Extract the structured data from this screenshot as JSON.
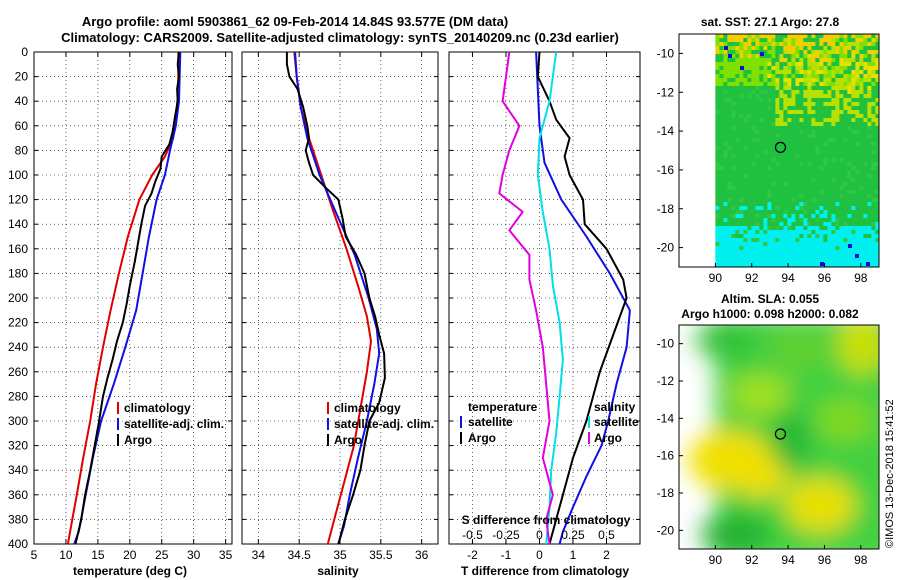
{
  "header": {
    "title_line1": "Argo profile: aoml 5903861_62 09-Feb-2014 14.84S 93.577E (DM data)",
    "title_line2": "Climatology: CARS2009. Satellite-adjusted climatology: synTS_20140209.nc (0.23d earlier)"
  },
  "watermark": "©IMOS 13-Dec-2018 15:41:52",
  "colors": {
    "climatology": "#e00000",
    "satellite": "#1010e0",
    "argo": "#000000",
    "t_diff": "#00e0e8",
    "s_diff": "#e000e0"
  },
  "chart_data": [
    {
      "type": "line",
      "name": "temperature",
      "xlabel": "temperature (deg C)",
      "ylabel": "depth",
      "xlim": [
        5,
        36
      ],
      "ylim": [
        0,
        400
      ],
      "xticks": [
        "5",
        "10",
        "15",
        "20",
        "25",
        "30",
        "35"
      ],
      "yticks": [
        "0",
        "20",
        "40",
        "60",
        "80",
        "100",
        "120",
        "140",
        "160",
        "180",
        "200",
        "220",
        "240",
        "260",
        "280",
        "300",
        "320",
        "340",
        "360",
        "380",
        "400"
      ],
      "legend": [
        "climatology",
        "satellite-adj. clim.",
        "Argo"
      ],
      "series": [
        {
          "name": "climatology",
          "color": "#e00000",
          "points": [
            [
              27.6,
              0
            ],
            [
              27.6,
              30
            ],
            [
              27.3,
              50
            ],
            [
              26.8,
              70
            ],
            [
              25.5,
              85
            ],
            [
              23.5,
              100
            ],
            [
              21.5,
              120
            ],
            [
              19.7,
              150
            ],
            [
              18.3,
              180
            ],
            [
              17.0,
              210
            ],
            [
              15.8,
              240
            ],
            [
              14.7,
              270
            ],
            [
              13.8,
              300
            ],
            [
              12.7,
              330
            ],
            [
              11.7,
              360
            ],
            [
              11.0,
              380
            ],
            [
              10.3,
              400
            ]
          ]
        },
        {
          "name": "satellite-adj. clim.",
          "color": "#1010e0",
          "points": [
            [
              27.9,
              0
            ],
            [
              27.7,
              40
            ],
            [
              27.2,
              60
            ],
            [
              26.3,
              80
            ],
            [
              25.5,
              100
            ],
            [
              24.2,
              120
            ],
            [
              23.0,
              150
            ],
            [
              22.0,
              180
            ],
            [
              21.0,
              210
            ],
            [
              19.3,
              240
            ],
            [
              17.5,
              270
            ],
            [
              15.5,
              300
            ],
            [
              14.2,
              330
            ],
            [
              13.1,
              360
            ],
            [
              12.0,
              390
            ],
            [
              11.3,
              400
            ]
          ]
        },
        {
          "name": "Argo",
          "color": "#000000",
          "points": [
            [
              27.7,
              0
            ],
            [
              27.5,
              10
            ],
            [
              27.7,
              20
            ],
            [
              27.4,
              30
            ],
            [
              27.5,
              40
            ],
            [
              27.0,
              55
            ],
            [
              26.7,
              65
            ],
            [
              26.2,
              75
            ],
            [
              25.0,
              85
            ],
            [
              24.8,
              95
            ],
            [
              24.0,
              105
            ],
            [
              23.4,
              115
            ],
            [
              22.4,
              125
            ],
            [
              21.8,
              140
            ],
            [
              21.3,
              155
            ],
            [
              20.8,
              170
            ],
            [
              20.0,
              190
            ],
            [
              19.5,
              205
            ],
            [
              18.9,
              220
            ],
            [
              18.0,
              235
            ],
            [
              17.3,
              250
            ],
            [
              16.5,
              265
            ],
            [
              15.8,
              280
            ],
            [
              15.2,
              300
            ],
            [
              14.5,
              320
            ],
            [
              13.8,
              340
            ],
            [
              13.0,
              360
            ],
            [
              12.4,
              380
            ],
            [
              11.5,
              400
            ]
          ]
        }
      ]
    },
    {
      "type": "line",
      "name": "salinity",
      "xlabel": "salinity",
      "xlim": [
        33.8,
        36.2
      ],
      "ylim": [
        0,
        400
      ],
      "xticks": [
        "34",
        "34.5",
        "35",
        "35.5",
        "36"
      ],
      "legend": [
        "climatology",
        "satellite-adj. clim.",
        "Argo"
      ],
      "series": [
        {
          "name": "climatology",
          "color": "#e00000",
          "points": [
            [
              34.44,
              0
            ],
            [
              34.47,
              20
            ],
            [
              34.52,
              45
            ],
            [
              34.62,
              70
            ],
            [
              34.77,
              100
            ],
            [
              34.92,
              130
            ],
            [
              35.08,
              160
            ],
            [
              35.22,
              190
            ],
            [
              35.33,
              215
            ],
            [
              35.38,
              235
            ],
            [
              35.33,
              260
            ],
            [
              35.25,
              290
            ],
            [
              35.17,
              320
            ],
            [
              35.05,
              350
            ],
            [
              34.95,
              375
            ],
            [
              34.85,
              400
            ]
          ]
        },
        {
          "name": "satellite-adj. clim.",
          "color": "#1010e0",
          "points": [
            [
              34.45,
              0
            ],
            [
              34.47,
              20
            ],
            [
              34.52,
              45
            ],
            [
              34.6,
              70
            ],
            [
              34.75,
              100
            ],
            [
              34.98,
              135
            ],
            [
              35.18,
              165
            ],
            [
              35.35,
              200
            ],
            [
              35.45,
              225
            ],
            [
              35.48,
              245
            ],
            [
              35.42,
              270
            ],
            [
              35.33,
              300
            ],
            [
              35.22,
              330
            ],
            [
              35.12,
              360
            ],
            [
              35.05,
              385
            ],
            [
              34.98,
              400
            ]
          ]
        },
        {
          "name": "Argo",
          "color": "#000000",
          "points": [
            [
              34.35,
              0
            ],
            [
              34.35,
              10
            ],
            [
              34.38,
              20
            ],
            [
              34.48,
              30
            ],
            [
              34.55,
              45
            ],
            [
              34.6,
              60
            ],
            [
              34.62,
              70
            ],
            [
              34.58,
              80
            ],
            [
              34.62,
              90
            ],
            [
              34.67,
              100
            ],
            [
              34.82,
              110
            ],
            [
              34.98,
              120
            ],
            [
              35.03,
              135
            ],
            [
              35.07,
              150
            ],
            [
              35.2,
              165
            ],
            [
              35.3,
              180
            ],
            [
              35.36,
              200
            ],
            [
              35.43,
              215
            ],
            [
              35.48,
              230
            ],
            [
              35.54,
              245
            ],
            [
              35.55,
              265
            ],
            [
              35.48,
              285
            ],
            [
              35.36,
              300
            ],
            [
              35.3,
              320
            ],
            [
              35.25,
              340
            ],
            [
              35.16,
              360
            ],
            [
              35.06,
              380
            ],
            [
              34.98,
              400
            ]
          ]
        }
      ]
    },
    {
      "type": "line",
      "name": "difference",
      "xlabel": "T difference from climatology",
      "top_axis_label": "S difference from climatology",
      "xlim": [
        -2.7,
        3.0
      ],
      "ylim": [
        0,
        400
      ],
      "xticks": [
        "-2",
        "-1",
        "0",
        "1",
        "2"
      ],
      "top_xticks": [
        "-0.5",
        "-0.25",
        "0",
        "0.25",
        "0.5"
      ],
      "legend_left": [
        "temperature",
        "satellite",
        "Argo"
      ],
      "legend_right": [
        "salinity",
        "satellite",
        "Argo"
      ],
      "series": [
        {
          "name": "T satellite",
          "color": "#1010e0",
          "points": [
            [
              -0.1,
              0
            ],
            [
              -0.05,
              30
            ],
            [
              0.0,
              60
            ],
            [
              0.15,
              90
            ],
            [
              0.65,
              120
            ],
            [
              1.4,
              150
            ],
            [
              2.1,
              180
            ],
            [
              2.7,
              210
            ],
            [
              2.6,
              240
            ],
            [
              2.3,
              270
            ],
            [
              2.05,
              300
            ],
            [
              1.85,
              320
            ],
            [
              1.4,
              345
            ],
            [
              1.0,
              370
            ],
            [
              0.7,
              390
            ],
            [
              0.6,
              400
            ]
          ]
        },
        {
          "name": "T Argo",
          "color": "#000000",
          "points": [
            [
              0.0,
              0
            ],
            [
              -0.05,
              20
            ],
            [
              0.3,
              40
            ],
            [
              0.5,
              55
            ],
            [
              0.9,
              70
            ],
            [
              0.75,
              85
            ],
            [
              0.9,
              100
            ],
            [
              1.3,
              120
            ],
            [
              1.35,
              140
            ],
            [
              2.0,
              160
            ],
            [
              2.5,
              185
            ],
            [
              2.6,
              200
            ],
            [
              2.2,
              230
            ],
            [
              1.8,
              260
            ],
            [
              1.6,
              280
            ],
            [
              1.4,
              300
            ],
            [
              1.0,
              330
            ],
            [
              0.7,
              360
            ],
            [
              0.5,
              380
            ],
            [
              0.3,
              400
            ]
          ]
        },
        {
          "name": "S satellite",
          "color": "#00e0e8",
          "points": [
            [
              0.5,
              0
            ],
            [
              0.3,
              40
            ],
            [
              0.0,
              70
            ],
            [
              -0.05,
              100
            ],
            [
              0.1,
              130
            ],
            [
              0.3,
              160
            ],
            [
              0.4,
              190
            ],
            [
              0.6,
              220
            ],
            [
              0.7,
              250
            ],
            [
              0.6,
              280
            ],
            [
              0.5,
              310
            ],
            [
              0.35,
              340
            ],
            [
              0.3,
              370
            ],
            [
              0.2,
              400
            ]
          ]
        },
        {
          "name": "S Argo",
          "color": "#e000e0",
          "points": [
            [
              -0.9,
              0
            ],
            [
              -1.0,
              20
            ],
            [
              -1.1,
              40
            ],
            [
              -0.6,
              60
            ],
            [
              -0.9,
              80
            ],
            [
              -1.1,
              100
            ],
            [
              -1.2,
              115
            ],
            [
              -0.5,
              130
            ],
            [
              -0.9,
              145
            ],
            [
              -0.3,
              165
            ],
            [
              -0.3,
              185
            ],
            [
              -0.1,
              210
            ],
            [
              0.1,
              240
            ],
            [
              0.2,
              270
            ],
            [
              0.3,
              300
            ],
            [
              0.1,
              330
            ],
            [
              0.4,
              360
            ],
            [
              0.2,
              380
            ],
            [
              0.3,
              400
            ]
          ]
        }
      ]
    },
    {
      "type": "heatmap",
      "name": "sst-map",
      "title": "sat. SST: 27.1  Argo: 27.8",
      "xlim": [
        88,
        99
      ],
      "ylim": [
        -21,
        -9
      ],
      "xticks": [
        "90",
        "92",
        "94",
        "96",
        "98"
      ],
      "yticks": [
        "-10",
        "-12",
        "-14",
        "-16",
        "-18",
        "-20"
      ],
      "argo_lon": 93.58,
      "argo_lat": -14.84
    },
    {
      "type": "heatmap",
      "name": "sla-map",
      "title": "Altim. SLA: 0.055",
      "subtitle": "Argo h1000: 0.098 h2000: 0.082",
      "xlim": [
        88,
        99
      ],
      "ylim": [
        -21,
        -9
      ],
      "xticks": [
        "90",
        "92",
        "94",
        "96",
        "98"
      ],
      "yticks": [
        "-10",
        "-12",
        "-14",
        "-16",
        "-18",
        "-20"
      ],
      "argo_lon": 93.58,
      "argo_lat": -14.84
    }
  ]
}
